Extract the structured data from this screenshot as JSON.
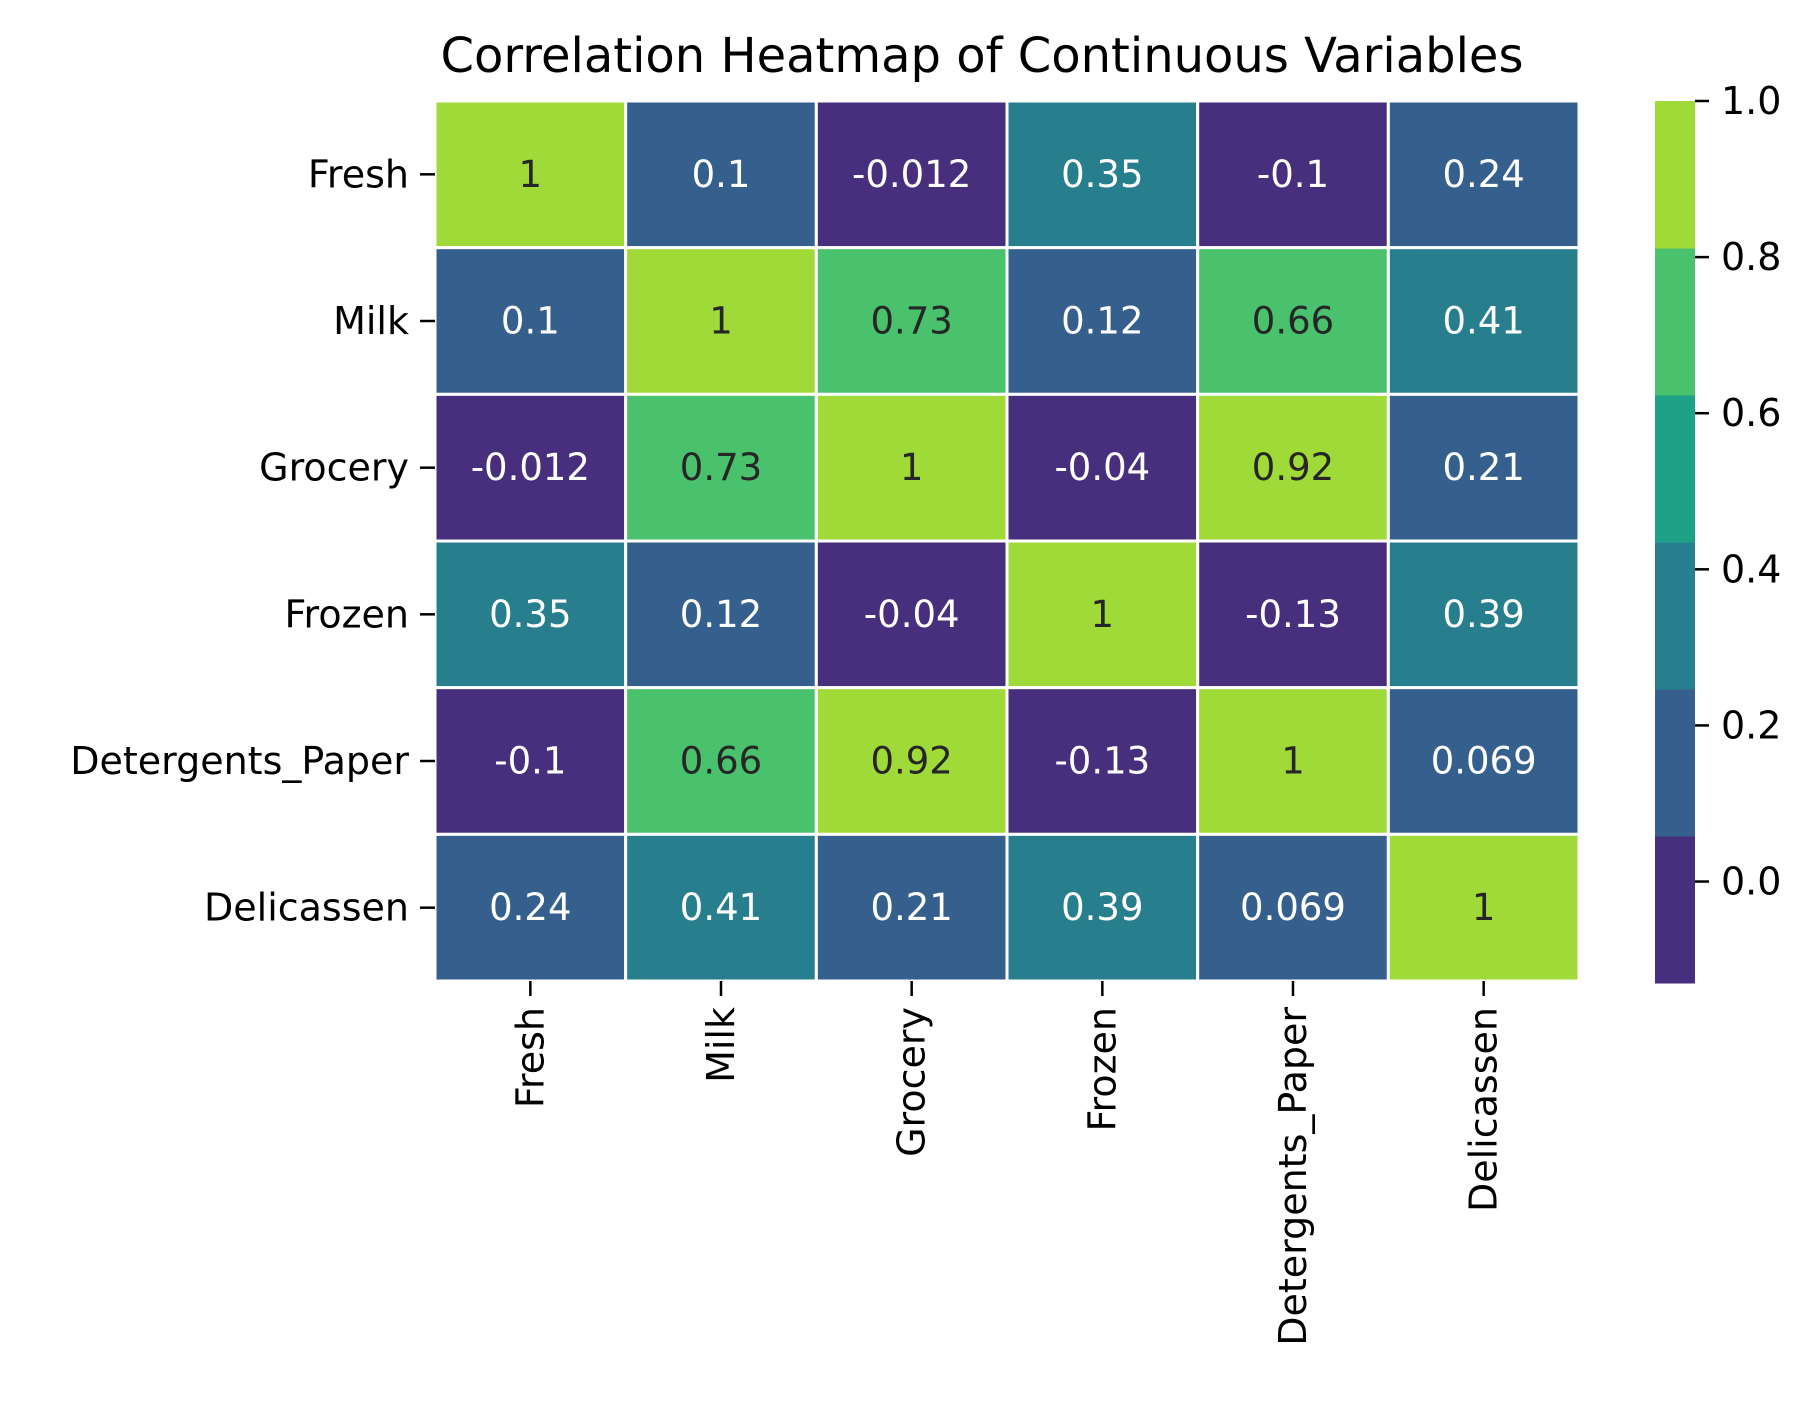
{
  "chart_data": {
    "type": "heatmap",
    "title": "Correlation Heatmap of Continuous Variables",
    "xlabel": "",
    "ylabel": "",
    "x_categories": [
      "Fresh",
      "Milk",
      "Grocery",
      "Frozen",
      "Detergents_Paper",
      "Delicassen"
    ],
    "y_categories": [
      "Fresh",
      "Milk",
      "Grocery",
      "Frozen",
      "Detergents_Paper",
      "Delicassen"
    ],
    "values": [
      [
        1,
        0.1,
        -0.012,
        0.35,
        -0.1,
        0.24
      ],
      [
        0.1,
        1,
        0.73,
        0.12,
        0.66,
        0.41
      ],
      [
        -0.012,
        0.73,
        1,
        -0.04,
        0.92,
        0.21
      ],
      [
        0.35,
        0.12,
        -0.04,
        1,
        -0.13,
        0.39
      ],
      [
        -0.1,
        0.66,
        0.92,
        -0.13,
        1,
        0.069
      ],
      [
        0.24,
        0.41,
        0.21,
        0.39,
        0.069,
        1
      ]
    ],
    "cell_labels": [
      [
        "1",
        "0.1",
        "-0.012",
        "0.35",
        "-0.1",
        "0.24"
      ],
      [
        "0.1",
        "1",
        "0.73",
        "0.12",
        "0.66",
        "0.41"
      ],
      [
        "-0.012",
        "0.73",
        "1",
        "-0.04",
        "0.92",
        "0.21"
      ],
      [
        "0.35",
        "0.12",
        "-0.04",
        "1",
        "-0.13",
        "0.39"
      ],
      [
        "-0.1",
        "0.66",
        "0.92",
        "-0.13",
        "1",
        "0.069"
      ],
      [
        "0.24",
        "0.41",
        "0.21",
        "0.39",
        "0.069",
        "1"
      ]
    ],
    "colorbar": {
      "range": [
        -0.13,
        1.0
      ],
      "ticks": [
        0.0,
        0.2,
        0.4,
        0.6,
        0.8,
        1.0
      ],
      "tick_labels": [
        "0.0",
        "0.2",
        "0.4",
        "0.6",
        "0.8",
        "1.0"
      ],
      "colors": [
        "#472f7d",
        "#355f8d",
        "#277f8e",
        "#1fa187",
        "#4ac16d",
        "#a0da39"
      ]
    },
    "grid": true,
    "legend": "colorbar-right"
  }
}
